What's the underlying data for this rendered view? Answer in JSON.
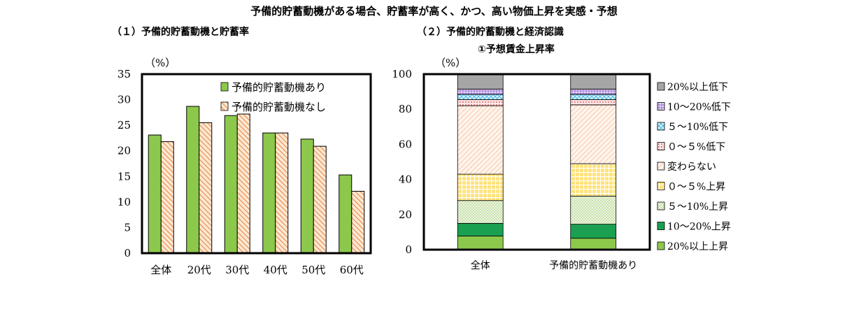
{
  "title": "予備的貯蓄動機がある場合、貯蓄率が高く、かつ、高い物価上昇を実感・予想",
  "panel1": {
    "heading": "（１）予備的貯蓄動機と貯蓄率"
  },
  "panel2": {
    "heading": "（２）予備的貯蓄動機と経済認識",
    "subheading": "①予想賃金上昇率"
  },
  "colors": {
    "green": "#8cc84b",
    "orange_hatch": "#f0a060",
    "grey": "#a6a6a6",
    "purple": "#b090d8",
    "cyan": "#70c8e8",
    "pink": "#e88080",
    "peach": "#f2b48a",
    "yellow": "#ffd040",
    "light_green": "#c0dca0",
    "dark_green": "#1aa050"
  },
  "chart_data": [
    {
      "type": "bar",
      "ylabel": "（%）",
      "ylim": [
        0,
        35
      ],
      "yticks": [
        0,
        5,
        10,
        15,
        20,
        25,
        30,
        35
      ],
      "categories": [
        "全体",
        "20代",
        "30代",
        "40代",
        "50代",
        "60代"
      ],
      "legend_position": "top-right",
      "series": [
        {
          "name": "予備的貯蓄動機あり",
          "values": [
            23.1,
            28.7,
            26.9,
            23.5,
            22.3,
            15.3
          ]
        },
        {
          "name": "予備的貯蓄動機なし",
          "values": [
            21.8,
            25.5,
            27.2,
            23.5,
            20.9,
            12.1
          ]
        }
      ]
    },
    {
      "type": "bar",
      "stacked": true,
      "ylabel": "（%）",
      "ylim": [
        0,
        100
      ],
      "yticks": [
        0,
        20,
        40,
        60,
        80,
        100
      ],
      "categories": [
        "全体",
        "予備的貯蓄動機あり"
      ],
      "legend_position": "right",
      "series": [
        {
          "name": "20%以上上昇",
          "values": [
            7.8,
            6.5
          ]
        },
        {
          "name": "10～20%上昇",
          "values": [
            7.2,
            8.0
          ]
        },
        {
          "name": "５～10%上昇",
          "values": [
            13.0,
            16.0
          ]
        },
        {
          "name": "０～５%上昇",
          "values": [
            15.0,
            18.5
          ]
        },
        {
          "name": "変わらない",
          "values": [
            39.0,
            33.5
          ]
        },
        {
          "name": "０～５%低下",
          "values": [
            3.5,
            3.0
          ]
        },
        {
          "name": "５～10%低下",
          "values": [
            3.0,
            3.0
          ]
        },
        {
          "name": "10～20%低下",
          "values": [
            3.0,
            3.0
          ]
        },
        {
          "name": "20%以上低下",
          "values": [
            8.5,
            8.5
          ]
        }
      ]
    }
  ]
}
